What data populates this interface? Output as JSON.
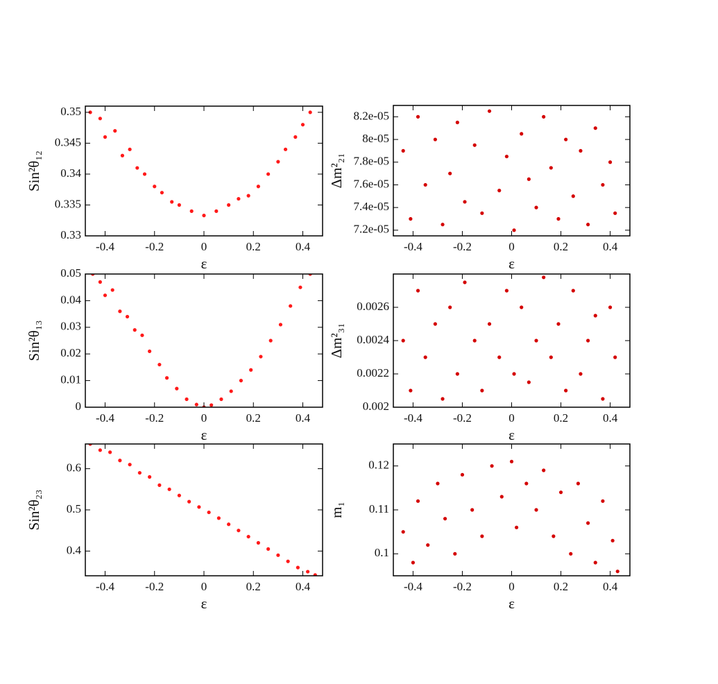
{
  "chart_data": [
    {
      "type": "scatter",
      "x_label": "ε",
      "y_label": "Sin²θ₁₂",
      "color": "#ff1a1a",
      "x": [
        -0.46,
        -0.42,
        -0.4,
        -0.36,
        -0.33,
        -0.3,
        -0.27,
        -0.24,
        -0.2,
        -0.17,
        -0.13,
        -0.1,
        -0.05,
        0,
        0.05,
        0.1,
        0.14,
        0.18,
        0.22,
        0.26,
        0.3,
        0.33,
        0.37,
        0.4,
        0.43
      ],
      "values": [
        0.35,
        0.349,
        0.346,
        0.347,
        0.343,
        0.344,
        0.341,
        0.34,
        0.338,
        0.337,
        0.3355,
        0.335,
        0.334,
        0.3333,
        0.334,
        0.335,
        0.336,
        0.3365,
        0.338,
        0.34,
        0.342,
        0.344,
        0.346,
        0.348,
        0.35
      ],
      "xlim": [
        -0.48,
        0.48
      ],
      "ylim": [
        0.33,
        0.351
      ],
      "xticks": [
        -0.4,
        -0.2,
        0,
        0.2,
        0.4
      ],
      "yticks": [
        0.33,
        0.335,
        0.34,
        0.345,
        0.35
      ]
    },
    {
      "type": "scatter",
      "x_label": "ε",
      "y_label": "Δm²₂₁",
      "color": "#d40000",
      "x": [
        -0.44,
        -0.41,
        -0.38,
        -0.35,
        -0.31,
        -0.28,
        -0.25,
        -0.22,
        -0.19,
        -0.15,
        -0.12,
        -0.09,
        -0.05,
        -0.02,
        0.01,
        0.04,
        0.07,
        0.1,
        0.13,
        0.16,
        0.19,
        0.22,
        0.25,
        0.28,
        0.31,
        0.34,
        0.37,
        0.4,
        0.42
      ],
      "values": [
        7.9e-05,
        7.3e-05,
        8.2e-05,
        7.6e-05,
        8e-05,
        7.25e-05,
        7.7e-05,
        8.15e-05,
        7.45e-05,
        7.95e-05,
        7.35e-05,
        8.25e-05,
        7.55e-05,
        7.85e-05,
        7.2e-05,
        8.05e-05,
        7.65e-05,
        7.4e-05,
        8.2e-05,
        7.75e-05,
        7.3e-05,
        8e-05,
        7.5e-05,
        7.9e-05,
        7.25e-05,
        8.1e-05,
        7.6e-05,
        7.8e-05,
        7.35e-05
      ],
      "xlim": [
        -0.48,
        0.48
      ],
      "ylim": [
        7.15e-05,
        8.3e-05
      ],
      "xticks": [
        -0.4,
        -0.2,
        0,
        0.2,
        0.4
      ],
      "yticks": [
        {
          "value": 7.2e-05,
          "label": "7.2e-05"
        },
        {
          "value": 7.4e-05,
          "label": "7.4e-05"
        },
        {
          "value": 7.6e-05,
          "label": "7.6e-05"
        },
        {
          "value": 7.8e-05,
          "label": "7.8e-05"
        },
        {
          "value": 8e-05,
          "label": "8e-05"
        },
        {
          "value": 8.2e-05,
          "label": "8.2e-05"
        }
      ]
    },
    {
      "type": "scatter",
      "x_label": "ε",
      "y_label": "Sin²θ₁₃",
      "color": "#ff1a1a",
      "x": [
        -0.45,
        -0.42,
        -0.4,
        -0.37,
        -0.34,
        -0.31,
        -0.28,
        -0.25,
        -0.22,
        -0.18,
        -0.15,
        -0.11,
        -0.07,
        -0.03,
        0,
        0.03,
        0.07,
        0.11,
        0.15,
        0.19,
        0.23,
        0.27,
        0.31,
        0.35,
        0.39,
        0.43
      ],
      "values": [
        0.05,
        0.047,
        0.042,
        0.044,
        0.036,
        0.034,
        0.029,
        0.027,
        0.021,
        0.016,
        0.011,
        0.007,
        0.003,
        0.001,
        0,
        0.0008,
        0.003,
        0.006,
        0.01,
        0.014,
        0.019,
        0.025,
        0.031,
        0.038,
        0.045,
        0.05
      ],
      "xlim": [
        -0.48,
        0.48
      ],
      "ylim": [
        0,
        0.05
      ],
      "xticks": [
        -0.4,
        -0.2,
        0,
        0.2,
        0.4
      ],
      "yticks": [
        0,
        0.01,
        0.02,
        0.03,
        0.04,
        0.05
      ]
    },
    {
      "type": "scatter",
      "x_label": "ε",
      "y_label": "Δm²₃₁",
      "color": "#d40000",
      "x": [
        -0.44,
        -0.41,
        -0.38,
        -0.35,
        -0.31,
        -0.28,
        -0.25,
        -0.22,
        -0.19,
        -0.15,
        -0.12,
        -0.09,
        -0.05,
        -0.02,
        0.01,
        0.04,
        0.07,
        0.1,
        0.13,
        0.16,
        0.19,
        0.22,
        0.25,
        0.28,
        0.31,
        0.34,
        0.37,
        0.4,
        0.42
      ],
      "values": [
        0.0024,
        0.0021,
        0.0027,
        0.0023,
        0.0025,
        0.00205,
        0.0026,
        0.0022,
        0.00275,
        0.0024,
        0.0021,
        0.0025,
        0.0023,
        0.0027,
        0.0022,
        0.0026,
        0.00215,
        0.0024,
        0.00278,
        0.0023,
        0.0025,
        0.0021,
        0.0027,
        0.0022,
        0.0024,
        0.00255,
        0.00205,
        0.0026,
        0.0023
      ],
      "xlim": [
        -0.48,
        0.48
      ],
      "ylim": [
        0.002,
        0.0028
      ],
      "xticks": [
        -0.4,
        -0.2,
        0,
        0.2,
        0.4
      ],
      "yticks": [
        0.002,
        0.0022,
        0.0024,
        0.0026
      ]
    },
    {
      "type": "scatter",
      "x_label": "ε",
      "y_label": "Sin²θ₂₃",
      "color": "#ff1a1a",
      "x": [
        -0.46,
        -0.42,
        -0.38,
        -0.34,
        -0.3,
        -0.26,
        -0.22,
        -0.18,
        -0.14,
        -0.1,
        -0.06,
        -0.02,
        0.02,
        0.06,
        0.1,
        0.14,
        0.18,
        0.22,
        0.26,
        0.3,
        0.34,
        0.38,
        0.42,
        0.45
      ],
      "values": [
        0.66,
        0.645,
        0.64,
        0.62,
        0.61,
        0.59,
        0.58,
        0.56,
        0.55,
        0.535,
        0.52,
        0.507,
        0.494,
        0.48,
        0.465,
        0.45,
        0.435,
        0.42,
        0.405,
        0.39,
        0.375,
        0.36,
        0.35,
        0.342
      ],
      "xlim": [
        -0.48,
        0.48
      ],
      "ylim": [
        0.34,
        0.66
      ],
      "xticks": [
        -0.4,
        -0.2,
        0,
        0.2,
        0.4
      ],
      "yticks": [
        0.4,
        0.5,
        0.6
      ]
    },
    {
      "type": "scatter",
      "x_label": "ε",
      "y_label": "m₁",
      "color": "#d40000",
      "x": [
        -0.44,
        -0.4,
        -0.38,
        -0.34,
        -0.3,
        -0.27,
        -0.23,
        -0.2,
        -0.16,
        -0.12,
        -0.08,
        -0.04,
        0,
        0.02,
        0.06,
        0.1,
        0.13,
        0.17,
        0.2,
        0.24,
        0.27,
        0.31,
        0.34,
        0.37,
        0.41,
        0.43
      ],
      "values": [
        0.105,
        0.098,
        0.112,
        0.102,
        0.116,
        0.108,
        0.1,
        0.118,
        0.11,
        0.104,
        0.12,
        0.113,
        0.121,
        0.106,
        0.116,
        0.11,
        0.119,
        0.104,
        0.114,
        0.1,
        0.116,
        0.107,
        0.098,
        0.112,
        0.103,
        0.096
      ],
      "xlim": [
        -0.48,
        0.48
      ],
      "ylim": [
        0.095,
        0.125
      ],
      "xticks": [
        -0.4,
        -0.2,
        0,
        0.2,
        0.4
      ],
      "yticks": [
        0.1,
        0.11,
        0.12
      ]
    }
  ]
}
